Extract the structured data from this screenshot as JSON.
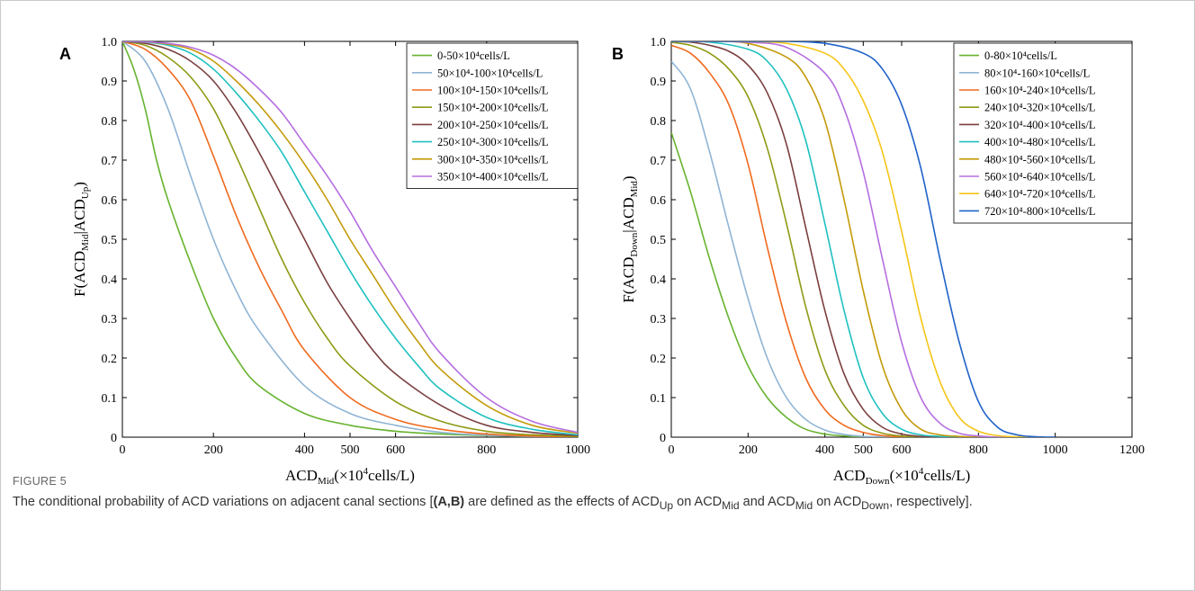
{
  "figure_label": "FIGURE 5",
  "caption": {
    "pre": "The conditional probability of ACD variations on adjacent canal sections [",
    "bold": "(A,B)",
    "mid1": " are defined as the effects of ACD",
    "sub1": "Up",
    "mid2": " on ACD",
    "sub2": "Mid",
    "mid3": " and ACD",
    "sub3": "Mid",
    "mid4": " on ACD",
    "sub4": "Down",
    "post": ", respectively]."
  },
  "chart_data": [
    {
      "panel": "A",
      "type": "line",
      "xlabel": {
        "main": "ACD",
        "sub": "Mid",
        "rest": "(×10",
        "sup": "4",
        "tail": "cells/L)"
      },
      "ylabel": {
        "main": "F(ACD",
        "sub1": "Mid",
        "mid": "|ACD",
        "sub2": "Up",
        "tail": ")"
      },
      "xlim": [
        0,
        1000
      ],
      "ylim": [
        0,
        1
      ],
      "xticks": [
        0,
        200,
        400,
        500,
        600,
        800,
        1000
      ],
      "yticks": [
        0,
        0.1,
        0.2,
        0.3,
        0.4,
        0.5,
        0.6,
        0.7,
        0.8,
        0.9,
        1.0
      ],
      "ytick_labels": [
        "0",
        "0.1",
        "0.2",
        "0.3",
        "0.4",
        "0.5",
        "0.6",
        "0.7",
        "0.8",
        "0.9",
        "1.0"
      ],
      "legend_position": "top-right",
      "series": [
        {
          "name": "0-50×10⁴cells/L",
          "color": "#66b32e",
          "x": [
            0,
            25,
            50,
            75,
            100,
            150,
            200,
            250,
            300,
            400,
            500,
            600,
            700,
            800,
            900,
            1000
          ],
          "y": [
            1.0,
            0.93,
            0.83,
            0.7,
            0.6,
            0.44,
            0.3,
            0.2,
            0.13,
            0.06,
            0.03,
            0.015,
            0.008,
            0.004,
            0.002,
            0.001
          ]
        },
        {
          "name": "50×10⁴-100×10⁴cells/L",
          "color": "#8fb4d4",
          "x": [
            0,
            50,
            100,
            150,
            200,
            250,
            300,
            400,
            500,
            600,
            700,
            800,
            900,
            1000
          ],
          "y": [
            1.0,
            0.95,
            0.83,
            0.66,
            0.5,
            0.37,
            0.27,
            0.13,
            0.06,
            0.03,
            0.012,
            0.005,
            0.002,
            0.001
          ]
        },
        {
          "name": "100×10⁴-150×10⁴cells/L",
          "color": "#f06a1e",
          "x": [
            0,
            50,
            100,
            150,
            200,
            250,
            300,
            350,
            400,
            500,
            600,
            700,
            800,
            900,
            1000
          ],
          "y": [
            1.0,
            0.98,
            0.93,
            0.85,
            0.71,
            0.56,
            0.43,
            0.32,
            0.22,
            0.1,
            0.045,
            0.02,
            0.008,
            0.003,
            0.001
          ]
        },
        {
          "name": "150×10⁴-200×10⁴cells/L",
          "color": "#8e9a14",
          "x": [
            0,
            50,
            100,
            150,
            200,
            250,
            300,
            350,
            400,
            450,
            500,
            600,
            700,
            800,
            900,
            1000
          ],
          "y": [
            1.0,
            0.99,
            0.96,
            0.91,
            0.83,
            0.71,
            0.58,
            0.45,
            0.34,
            0.25,
            0.18,
            0.09,
            0.04,
            0.015,
            0.006,
            0.002
          ]
        },
        {
          "name": "200×10⁴-250×10⁴cells/L",
          "color": "#7b3f3f",
          "x": [
            0,
            50,
            100,
            150,
            200,
            250,
            300,
            350,
            400,
            450,
            500,
            550,
            600,
            700,
            800,
            900,
            1000
          ],
          "y": [
            1.0,
            0.995,
            0.98,
            0.95,
            0.9,
            0.82,
            0.72,
            0.61,
            0.5,
            0.39,
            0.3,
            0.22,
            0.16,
            0.08,
            0.03,
            0.012,
            0.004
          ]
        },
        {
          "name": "250×10⁴-300×10⁴cells/L",
          "color": "#1fc0c0",
          "x": [
            0,
            50,
            100,
            150,
            200,
            250,
            300,
            350,
            400,
            450,
            500,
            550,
            600,
            650,
            700,
            800,
            900,
            1000
          ],
          "y": [
            1.0,
            0.998,
            0.99,
            0.97,
            0.93,
            0.87,
            0.8,
            0.72,
            0.62,
            0.52,
            0.42,
            0.33,
            0.25,
            0.18,
            0.12,
            0.05,
            0.02,
            0.006
          ]
        },
        {
          "name": "300×10⁴-350×10⁴cells/L",
          "color": "#c49a0a",
          "x": [
            0,
            50,
            100,
            150,
            200,
            250,
            300,
            350,
            400,
            450,
            500,
            550,
            600,
            650,
            700,
            800,
            900,
            1000
          ],
          "y": [
            1.0,
            0.999,
            0.993,
            0.98,
            0.95,
            0.9,
            0.84,
            0.77,
            0.69,
            0.6,
            0.5,
            0.41,
            0.32,
            0.24,
            0.17,
            0.08,
            0.03,
            0.01
          ]
        },
        {
          "name": "350×10⁴-400×10⁴cells/L",
          "color": "#b56ee0",
          "x": [
            0,
            50,
            100,
            150,
            200,
            250,
            300,
            350,
            400,
            450,
            500,
            550,
            600,
            650,
            700,
            800,
            900,
            1000
          ],
          "y": [
            1.0,
            0.999,
            0.995,
            0.985,
            0.965,
            0.93,
            0.88,
            0.82,
            0.74,
            0.66,
            0.57,
            0.47,
            0.38,
            0.29,
            0.21,
            0.1,
            0.04,
            0.012
          ]
        }
      ]
    },
    {
      "panel": "B",
      "type": "line",
      "xlabel": {
        "main": "ACD",
        "sub": "Down",
        "rest": "(×10",
        "sup": "4",
        "tail": "cells/L)"
      },
      "ylabel": {
        "main": "F(ACD",
        "sub1": "Down",
        "mid": "|ACD",
        "sub2": "Mid",
        "tail": ")"
      },
      "xlim": [
        0,
        1200
      ],
      "ylim": [
        0,
        1
      ],
      "xticks": [
        0,
        200,
        400,
        500,
        600,
        800,
        1000,
        1200
      ],
      "yticks": [
        0,
        0.1,
        0.2,
        0.3,
        0.4,
        0.5,
        0.6,
        0.7,
        0.8,
        0.9,
        1.0
      ],
      "ytick_labels": [
        "0",
        "0.1",
        "0.2",
        "0.3",
        "0.4",
        "0.5",
        "0.6",
        "0.7",
        "0.8",
        "0.9",
        "1.0"
      ],
      "legend_position": "top-right",
      "series": [
        {
          "name": "0-80×10⁴cells/L",
          "color": "#66b32e",
          "x": [
            0,
            50,
            100,
            150,
            200,
            250,
            300,
            350,
            400,
            450,
            500,
            600,
            700,
            800
          ],
          "y": [
            0.77,
            0.62,
            0.45,
            0.3,
            0.18,
            0.1,
            0.05,
            0.02,
            0.008,
            0.003,
            0.001,
            0,
            0,
            0
          ]
        },
        {
          "name": "80×10⁴-160×10⁴cells/L",
          "color": "#8fb4d4",
          "x": [
            0,
            50,
            100,
            150,
            200,
            250,
            300,
            350,
            400,
            450,
            500,
            550,
            600,
            700,
            800
          ],
          "y": [
            0.95,
            0.88,
            0.72,
            0.53,
            0.35,
            0.2,
            0.1,
            0.045,
            0.018,
            0.007,
            0.002,
            0.001,
            0,
            0,
            0
          ]
        },
        {
          "name": "160×10⁴-240×10⁴cells/L",
          "color": "#f06a1e",
          "x": [
            0,
            50,
            100,
            150,
            200,
            250,
            300,
            350,
            400,
            450,
            500,
            550,
            600,
            650,
            700,
            800
          ],
          "y": [
            0.99,
            0.97,
            0.92,
            0.84,
            0.69,
            0.48,
            0.29,
            0.15,
            0.07,
            0.03,
            0.012,
            0.004,
            0.001,
            0,
            0,
            0
          ]
        },
        {
          "name": "240×10⁴-320×10⁴cells/L",
          "color": "#8e9a14",
          "x": [
            0,
            50,
            100,
            150,
            200,
            250,
            300,
            350,
            400,
            450,
            500,
            550,
            600,
            650,
            700,
            800
          ],
          "y": [
            0.998,
            0.99,
            0.97,
            0.93,
            0.86,
            0.73,
            0.54,
            0.33,
            0.17,
            0.08,
            0.03,
            0.01,
            0.003,
            0.001,
            0,
            0
          ]
        },
        {
          "name": "320×10⁴-400×10⁴cells/L",
          "color": "#7b3f3f",
          "x": [
            0,
            50,
            100,
            150,
            200,
            250,
            300,
            350,
            400,
            450,
            500,
            550,
            600,
            650,
            700,
            800
          ],
          "y": [
            1.0,
            0.998,
            0.99,
            0.975,
            0.94,
            0.87,
            0.74,
            0.53,
            0.32,
            0.16,
            0.07,
            0.025,
            0.008,
            0.002,
            0,
            0
          ]
        },
        {
          "name": "400×10⁴-480×10⁴cells/L",
          "color": "#1fc0c0",
          "x": [
            0,
            100,
            200,
            250,
            300,
            350,
            400,
            450,
            500,
            550,
            600,
            650,
            700,
            750,
            800
          ],
          "y": [
            1.0,
            0.998,
            0.98,
            0.95,
            0.88,
            0.75,
            0.54,
            0.32,
            0.15,
            0.06,
            0.02,
            0.006,
            0.002,
            0,
            0
          ]
        },
        {
          "name": "480×10⁴-560×10⁴cells/L",
          "color": "#c49a0a",
          "x": [
            0,
            100,
            200,
            300,
            350,
            400,
            450,
            500,
            550,
            600,
            650,
            700,
            750,
            800,
            850
          ],
          "y": [
            1.0,
            1.0,
            0.995,
            0.96,
            0.91,
            0.8,
            0.6,
            0.37,
            0.18,
            0.07,
            0.02,
            0.006,
            0.002,
            0,
            0
          ]
        },
        {
          "name": "560×10⁴-640×10⁴cells/L",
          "color": "#b56ee0",
          "x": [
            0,
            100,
            200,
            300,
            400,
            450,
            500,
            550,
            600,
            650,
            700,
            750,
            800,
            850,
            900
          ],
          "y": [
            1.0,
            1.0,
            0.998,
            0.985,
            0.92,
            0.83,
            0.67,
            0.45,
            0.24,
            0.1,
            0.035,
            0.01,
            0.003,
            0,
            0
          ]
        },
        {
          "name": "640×10⁴-720×10⁴cells/L",
          "color": "#f5c518",
          "x": [
            0,
            100,
            200,
            300,
            400,
            450,
            500,
            550,
            600,
            650,
            700,
            750,
            800,
            850,
            900,
            950
          ],
          "y": [
            1.0,
            1.0,
            1.0,
            0.995,
            0.97,
            0.93,
            0.85,
            0.72,
            0.52,
            0.3,
            0.14,
            0.05,
            0.015,
            0.004,
            0.001,
            0
          ]
        },
        {
          "name": "720×10⁴-800×10⁴cells/L",
          "color": "#1f62c8",
          "x": [
            0,
            100,
            200,
            300,
            400,
            500,
            550,
            600,
            650,
            700,
            750,
            800,
            850,
            900,
            950,
            1000
          ],
          "y": [
            1.0,
            1.0,
            1.0,
            1.0,
            0.995,
            0.97,
            0.93,
            0.84,
            0.68,
            0.45,
            0.24,
            0.09,
            0.025,
            0.006,
            0.001,
            0
          ]
        }
      ]
    }
  ]
}
